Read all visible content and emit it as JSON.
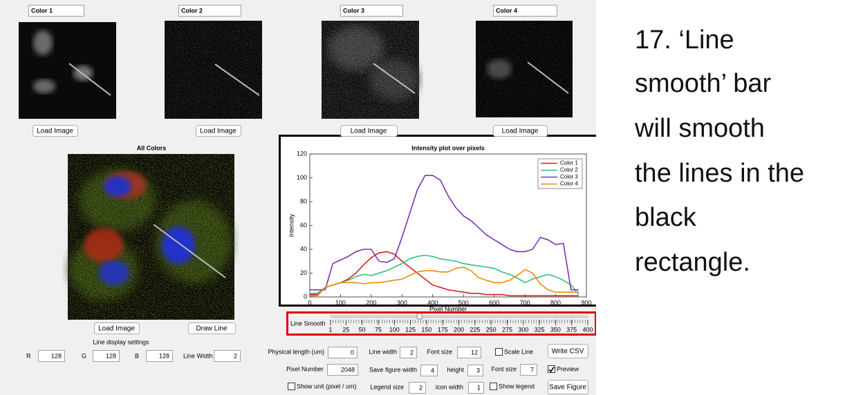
{
  "panels": [
    {
      "label": "Color 1",
      "button": "Load Image"
    },
    {
      "label": "Color 2",
      "button": "Load Image"
    },
    {
      "label": "Color 3",
      "button": "Load Image"
    },
    {
      "label": "Color 4",
      "button": "Load Image"
    }
  ],
  "composite": {
    "title": "All Colors",
    "load_button": "Load Image",
    "draw_button": "Draw Line"
  },
  "line_display": {
    "title": "Line display settings",
    "fields": [
      {
        "label": "R",
        "value": 128
      },
      {
        "label": "G",
        "value": 128
      },
      {
        "label": "B",
        "value": 128
      },
      {
        "label": "Line Width",
        "value": 2
      }
    ]
  },
  "chart_data": {
    "type": "line",
    "title": "Intensity plot over pixels",
    "x_label": "Pixel Number",
    "y_label": "Intensity",
    "x": [
      0,
      25,
      50,
      75,
      100,
      125,
      150,
      175,
      200,
      225,
      250,
      275,
      300,
      325,
      350,
      375,
      400,
      425,
      450,
      475,
      500,
      525,
      550,
      575,
      600,
      625,
      650,
      675,
      700,
      725,
      750,
      775,
      800,
      825,
      850,
      875
    ],
    "series": [
      {
        "name": "Color 1",
        "color": "#d62020",
        "values": [
          2,
          2,
          8,
          10,
          12,
          15,
          20,
          27,
          33,
          37,
          38,
          36,
          30,
          25,
          20,
          15,
          10,
          8,
          6,
          5,
          4,
          3,
          3,
          2,
          2,
          2,
          1,
          1,
          1,
          1,
          1,
          1,
          1,
          1,
          1,
          1
        ]
      },
      {
        "name": "Color 2",
        "color": "#2ec27e",
        "values": [
          3,
          3,
          8,
          10,
          12,
          14,
          17,
          19,
          18,
          20,
          22,
          25,
          28,
          32,
          34,
          35,
          34,
          32,
          31,
          30,
          28,
          27,
          26,
          25,
          24,
          21,
          19,
          16,
          12,
          15,
          17,
          19,
          17,
          14,
          10,
          2
        ]
      },
      {
        "name": "Color 3",
        "color": "#7b2fbe",
        "values": [
          6,
          6,
          6,
          28,
          31,
          34,
          38,
          40,
          40,
          30,
          29,
          32,
          50,
          70,
          90,
          102,
          102,
          98,
          85,
          75,
          68,
          64,
          58,
          52,
          48,
          44,
          40,
          38,
          38,
          40,
          50,
          48,
          44,
          45,
          6,
          6
        ]
      },
      {
        "name": "Color 4",
        "color": "#f08a00",
        "values": [
          1,
          1,
          8,
          10,
          12,
          12,
          12,
          11,
          12,
          12,
          13,
          14,
          15,
          18,
          21,
          22,
          22,
          21,
          21,
          24,
          25,
          22,
          16,
          14,
          12,
          12,
          14,
          18,
          23,
          20,
          11,
          6,
          4,
          4,
          4,
          4
        ]
      }
    ],
    "xlim": [
      0,
      900
    ],
    "xticks": [
      0,
      100,
      200,
      300,
      400,
      500,
      600,
      700,
      800,
      900
    ],
    "ylim": [
      0,
      120
    ],
    "yticks": [
      0,
      20,
      40,
      60,
      80,
      100,
      120
    ],
    "legend": "upper right"
  },
  "slider": {
    "label": "Line Smooth",
    "range": [
      1,
      400
    ],
    "value": 139,
    "ticks": [
      1,
      25,
      50,
      75,
      100,
      125,
      150,
      175,
      200,
      225,
      250,
      275,
      300,
      325,
      350,
      375,
      400
    ]
  },
  "controls": {
    "fields": [
      {
        "label": "Physical length (um)",
        "value": 0
      },
      {
        "label": "Line width",
        "value": 2
      },
      {
        "label": "Font size",
        "value": 12
      },
      {
        "label": "Pixel Number",
        "value": 2048
      },
      {
        "label": "Save figure width",
        "value": 4
      },
      {
        "label": "height",
        "value": 3
      },
      {
        "label": "Font size",
        "value": 7
      },
      {
        "label": "Legend size",
        "value": 2
      },
      {
        "label": "icon width",
        "value": 1
      }
    ],
    "checkboxes": [
      {
        "label": "Scale Line",
        "checked": false
      },
      {
        "label": "Preview",
        "checked": true
      },
      {
        "label": "Show unit (pixel / um)",
        "checked": false
      },
      {
        "label": "Show legend",
        "checked": false
      }
    ],
    "buttons": [
      "Write CSV",
      "Save Figure"
    ]
  },
  "caption": {
    "lines": [
      "17. ‘Line",
      "smooth’ bar",
      "will smooth",
      "the lines in the",
      "black",
      "rectangle."
    ]
  }
}
